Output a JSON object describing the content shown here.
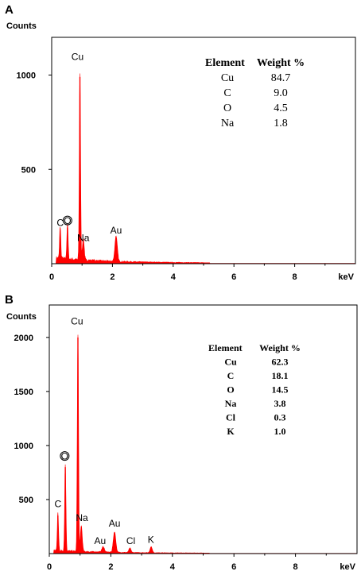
{
  "chart_data": [
    {
      "panel": "A",
      "type": "area",
      "y_axis_label": "Counts",
      "x_unit": "keV",
      "xlim": [
        0,
        10
      ],
      "ylim": [
        0,
        1200
      ],
      "x_ticks": [
        "0",
        "2",
        "4",
        "6",
        "8"
      ],
      "y_ticks": [
        "500",
        "1000"
      ],
      "grid": false,
      "colors": {
        "spectrum": "#ff0000",
        "frame": "#000000"
      },
      "peaks": [
        {
          "label": "C",
          "x": 0.28,
          "y": 170,
          "width": 0.04
        },
        {
          "label": "O",
          "x": 0.52,
          "y": 190,
          "width": 0.04
        },
        {
          "label": "Cu",
          "x": 0.93,
          "y": 990,
          "width": 0.04
        },
        {
          "label": "Na",
          "x": 1.04,
          "y": 115,
          "width": 0.06
        },
        {
          "label": "Au",
          "x": 2.12,
          "y": 135,
          "width": 0.08
        }
      ],
      "peak_labels": [
        {
          "text": "Cu",
          "x": 0.85,
          "y": 1080
        },
        {
          "text": "C",
          "x": 0.28,
          "y": 200
        },
        {
          "text": "O",
          "x": 0.52,
          "y": 210
        },
        {
          "text": "Na",
          "x": 1.04,
          "y": 120
        },
        {
          "text": "Au",
          "x": 2.12,
          "y": 160
        }
      ],
      "circled_labels": [
        "O"
      ],
      "table": {
        "headers": [
          "Element",
          "Weight %"
        ],
        "rows": [
          [
            "Cu",
            "84.7"
          ],
          [
            "C",
            "9.0"
          ],
          [
            "O",
            "4.5"
          ],
          [
            "Na",
            "1.8"
          ]
        ]
      }
    },
    {
      "panel": "B",
      "type": "area",
      "y_axis_label": "Counts",
      "x_unit": "keV",
      "xlim": [
        0,
        10
      ],
      "ylim": [
        0,
        2300
      ],
      "x_ticks": [
        "0",
        "2",
        "4",
        "6",
        "8"
      ],
      "y_ticks": [
        "500",
        "1000",
        "1500",
        "2000"
      ],
      "grid": false,
      "colors": {
        "spectrum": "#ff0000",
        "frame": "#000000"
      },
      "peaks": [
        {
          "label": "C",
          "x": 0.28,
          "y": 350,
          "width": 0.04
        },
        {
          "label": "O",
          "x": 0.52,
          "y": 800,
          "width": 0.04
        },
        {
          "label": "Cu",
          "x": 0.93,
          "y": 2000,
          "width": 0.04
        },
        {
          "label": "Na",
          "x": 1.04,
          "y": 240,
          "width": 0.06
        },
        {
          "label": "Au",
          "x": 1.75,
          "y": 50,
          "width": 0.08
        },
        {
          "label": "Au",
          "x": 2.12,
          "y": 190,
          "width": 0.08
        },
        {
          "label": "Cl",
          "x": 2.62,
          "y": 40,
          "width": 0.07
        },
        {
          "label": "K",
          "x": 3.31,
          "y": 55,
          "width": 0.07
        }
      ],
      "peak_labels": [
        {
          "text": "Cu",
          "x": 0.9,
          "y": 2120
        },
        {
          "text": "C",
          "x": 0.28,
          "y": 430
        },
        {
          "text": "O",
          "x": 0.5,
          "y": 870
        },
        {
          "text": "Na",
          "x": 1.06,
          "y": 300
        },
        {
          "text": "Au",
          "x": 1.65,
          "y": 90
        },
        {
          "text": "Au",
          "x": 2.12,
          "y": 250
        },
        {
          "text": "Cl",
          "x": 2.65,
          "y": 90
        },
        {
          "text": "K",
          "x": 3.3,
          "y": 100
        }
      ],
      "circled_labels": [
        "O"
      ],
      "table": {
        "headers": [
          "Element",
          "Weight %"
        ],
        "rows": [
          [
            "Cu",
            "62.3"
          ],
          [
            "C",
            "18.1"
          ],
          [
            "O",
            "14.5"
          ],
          [
            "Na",
            "3.8"
          ],
          [
            "Cl",
            "0.3"
          ],
          [
            "K",
            "1.0"
          ]
        ]
      }
    }
  ]
}
